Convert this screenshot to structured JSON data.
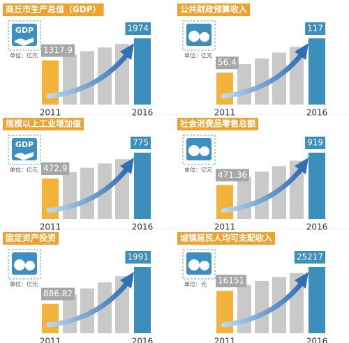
{
  "chart_data": [
    {
      "type": "bar",
      "title": "商丘市生产总值（GDP）",
      "icon_text": "GDP",
      "unit": "单位：亿元",
      "categories": [
        "2011",
        "2016"
      ],
      "values": [
        1317.9,
        1974
      ],
      "colors": [
        "#f2b33d",
        "#3b8fba"
      ]
    },
    {
      "type": "bar",
      "title": "公共财政预算收入",
      "unit": "单位：亿元",
      "categories": [
        "2011",
        "2016"
      ],
      "values": [
        56.4,
        117
      ],
      "colors": [
        "#f2b33d",
        "#3b8fba"
      ]
    },
    {
      "type": "bar",
      "title": "规模以上工业增加值",
      "icon_text": "GDP",
      "unit": "单位：亿元",
      "categories": [
        "2011",
        "2016"
      ],
      "values": [
        472.9,
        775
      ],
      "colors": [
        "#f2b33d",
        "#3b8fba"
      ]
    },
    {
      "type": "bar",
      "title": "社会消费品零售总额",
      "unit": "单位：亿元",
      "categories": [
        "2011",
        "2016"
      ],
      "values": [
        471.36,
        919
      ],
      "colors": [
        "#f2b33d",
        "#3b8fba"
      ]
    },
    {
      "type": "bar",
      "title": "固定资产投资",
      "unit": "单位：亿元",
      "categories": [
        "2011",
        "2016"
      ],
      "values": [
        886.82,
        1991
      ],
      "colors": [
        "#f2b33d",
        "#3b8fba"
      ]
    },
    {
      "type": "bar",
      "title": "城镇居民人均可支配收入",
      "unit": "单位：元",
      "categories": [
        "2011",
        "2016"
      ],
      "values": [
        16151,
        25217
      ],
      "colors": [
        "#f2b33d",
        "#3b8fba"
      ]
    }
  ]
}
